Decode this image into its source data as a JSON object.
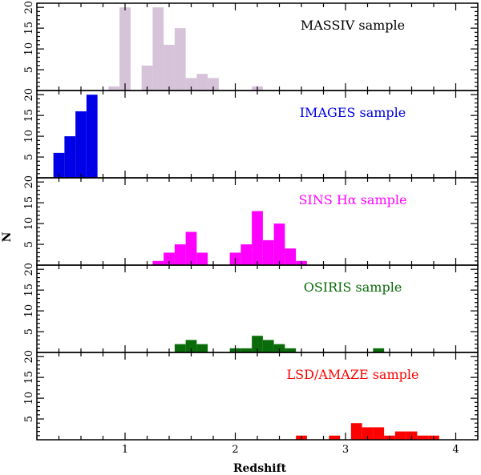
{
  "figure": {
    "xlabel": "Redshift",
    "ylabel": "N"
  },
  "chart_data": {
    "type": "bar",
    "layout": "five vertically stacked panels sharing the x axis",
    "xlim": [
      0.2,
      4.2
    ],
    "x_ticks": [
      1,
      2,
      3,
      4
    ],
    "x_tick_labels": [
      "1",
      "2",
      "3",
      "4"
    ],
    "y_ticks": [
      5,
      10,
      15,
      20
    ],
    "y_tick_labels": [
      "5",
      "10",
      "15",
      "20"
    ],
    "bin_width": 0.1,
    "grid": false,
    "legend": "none (sample name printed inside each panel, top-right)",
    "panels": [
      {
        "name": "MASSIV sample",
        "color": "#d6c3d9",
        "ylim": [
          0,
          21
        ],
        "bins": [
          {
            "x": 0.9,
            "count": 1
          },
          {
            "x": 1.0,
            "count": 20
          },
          {
            "x": 1.2,
            "count": 6
          },
          {
            "x": 1.3,
            "count": 20
          },
          {
            "x": 1.4,
            "count": 11
          },
          {
            "x": 1.5,
            "count": 15
          },
          {
            "x": 1.6,
            "count": 3
          },
          {
            "x": 1.7,
            "count": 4
          },
          {
            "x": 1.8,
            "count": 3
          },
          {
            "x": 2.2,
            "count": 1
          }
        ]
      },
      {
        "name": "IMAGES sample",
        "color": "#0000e6",
        "ylim": [
          0,
          21
        ],
        "bins": [
          {
            "x": 0.4,
            "count": 6
          },
          {
            "x": 0.5,
            "count": 10
          },
          {
            "x": 0.6,
            "count": 16
          },
          {
            "x": 0.7,
            "count": 20
          }
        ]
      },
      {
        "name": "SINS Hα sample",
        "color": "#ff00ff",
        "ylim": [
          0,
          21
        ],
        "bins": [
          {
            "x": 1.3,
            "count": 1
          },
          {
            "x": 1.4,
            "count": 3
          },
          {
            "x": 1.5,
            "count": 5
          },
          {
            "x": 1.6,
            "count": 8
          },
          {
            "x": 1.7,
            "count": 3
          },
          {
            "x": 2.0,
            "count": 3
          },
          {
            "x": 2.1,
            "count": 5
          },
          {
            "x": 2.2,
            "count": 13
          },
          {
            "x": 2.3,
            "count": 6
          },
          {
            "x": 2.4,
            "count": 10
          },
          {
            "x": 2.5,
            "count": 4
          },
          {
            "x": 2.6,
            "count": 1
          }
        ]
      },
      {
        "name": "OSIRIS sample",
        "color": "#0a6b0a",
        "ylim": [
          0,
          21
        ],
        "bins": [
          {
            "x": 1.5,
            "count": 2
          },
          {
            "x": 1.6,
            "count": 3
          },
          {
            "x": 1.7,
            "count": 2
          },
          {
            "x": 2.0,
            "count": 1
          },
          {
            "x": 2.1,
            "count": 1
          },
          {
            "x": 2.2,
            "count": 4
          },
          {
            "x": 2.3,
            "count": 3
          },
          {
            "x": 2.4,
            "count": 2
          },
          {
            "x": 2.5,
            "count": 1
          },
          {
            "x": 3.3,
            "count": 1
          }
        ]
      },
      {
        "name": "LSD/AMAZE sample",
        "color": "#ff0000",
        "ylim": [
          0,
          21
        ],
        "bins": [
          {
            "x": 2.6,
            "count": 1
          },
          {
            "x": 2.9,
            "count": 1
          },
          {
            "x": 3.1,
            "count": 4
          },
          {
            "x": 3.2,
            "count": 3
          },
          {
            "x": 3.3,
            "count": 3
          },
          {
            "x": 3.4,
            "count": 1
          },
          {
            "x": 3.5,
            "count": 2
          },
          {
            "x": 3.6,
            "count": 2
          },
          {
            "x": 3.7,
            "count": 1
          },
          {
            "x": 3.8,
            "count": 1
          }
        ]
      }
    ]
  }
}
